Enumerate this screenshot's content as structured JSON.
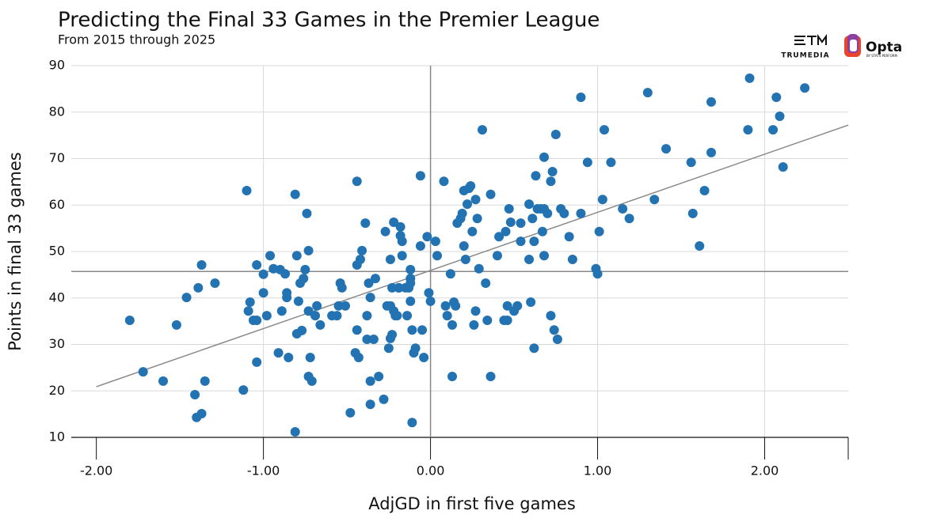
{
  "chart_data": {
    "type": "scatter",
    "title": "Predicting the Final 33 Games in the Premier League",
    "subtitle": "From 2015 through 2025",
    "xlabel": "AdjGD in first five games",
    "ylabel": "Points in final 33 games",
    "logos": [
      "TRUMEDIA",
      "Opta",
      "BY STATS PERFORM"
    ],
    "color": "#2373b3",
    "xlim": [
      -2.15,
      2.5
    ],
    "ylim": [
      10,
      90
    ],
    "xticks": [
      {
        "value": -2,
        "label": "-2.00"
      },
      {
        "value": -1,
        "label": "-1.00"
      },
      {
        "value": 0,
        "label": "0.00"
      },
      {
        "value": 1,
        "label": "1.00"
      },
      {
        "value": 2,
        "label": "2.00"
      }
    ],
    "yticks": [
      10,
      20,
      30,
      40,
      50,
      60,
      70,
      80,
      90
    ],
    "grid": true,
    "reference_lines": {
      "x": 0,
      "y": 45.7
    },
    "trend": {
      "x": [
        -2,
        2.5
      ],
      "values": [
        20.9,
        77.2
      ]
    },
    "x": [
      -1.8,
      -1.72,
      -1.6,
      -1.52,
      -1.46,
      -1.41,
      -1.4,
      -1.39,
      -1.37,
      -1.37,
      -1.35,
      -1.29,
      -1.12,
      -1.1,
      -1.09,
      -1.08,
      -1.06,
      -1.04,
      -1.04,
      -1.04,
      -1.0,
      -1.0,
      -0.98,
      -0.96,
      -0.94,
      -0.91,
      -0.9,
      -0.89,
      -0.87,
      -0.86,
      -0.86,
      -0.85,
      -0.81,
      -0.81,
      -0.8,
      -0.8,
      -0.79,
      -0.78,
      -0.77,
      -0.76,
      -0.75,
      -0.74,
      -0.73,
      -0.73,
      -0.73,
      -0.72,
      -0.71,
      -0.69,
      -0.68,
      -0.66,
      -0.59,
      -0.56,
      -0.55,
      -0.54,
      -0.53,
      -0.51,
      -0.48,
      -0.45,
      -0.44,
      -0.44,
      -0.44,
      -0.43,
      -0.42,
      -0.41,
      -0.39,
      -0.38,
      -0.38,
      -0.37,
      -0.36,
      -0.36,
      -0.36,
      -0.34,
      -0.33,
      -0.31,
      -0.28,
      -0.27,
      -0.26,
      -0.25,
      -0.24,
      -0.24,
      -0.24,
      -0.23,
      -0.23,
      -0.22,
      -0.22,
      -0.21,
      -0.2,
      -0.19,
      -0.19,
      -0.18,
      -0.18,
      -0.17,
      -0.17,
      -0.15,
      -0.14,
      -0.13,
      -0.12,
      -0.12,
      -0.12,
      -0.12,
      -0.11,
      -0.11,
      -0.1,
      -0.09,
      -0.06,
      -0.06,
      -0.05,
      -0.04,
      -0.02,
      -0.01,
      0.0,
      0.03,
      0.04,
      0.08,
      0.09,
      0.1,
      0.12,
      0.13,
      0.13,
      0.14,
      0.15,
      0.16,
      0.18,
      0.19,
      0.2,
      0.2,
      0.21,
      0.22,
      0.23,
      0.24,
      0.25,
      0.26,
      0.27,
      0.27,
      0.28,
      0.29,
      0.31,
      0.33,
      0.34,
      0.36,
      0.36,
      0.4,
      0.41,
      0.44,
      0.45,
      0.46,
      0.46,
      0.47,
      0.48,
      0.5,
      0.52,
      0.54,
      0.54,
      0.59,
      0.59,
      0.6,
      0.61,
      0.62,
      0.62,
      0.63,
      0.64,
      0.66,
      0.67,
      0.68,
      0.68,
      0.68,
      0.7,
      0.72,
      0.72,
      0.73,
      0.74,
      0.75,
      0.76,
      0.78,
      0.8,
      0.83,
      0.85,
      0.9,
      0.9,
      0.94,
      0.99,
      1.0,
      1.01,
      1.03,
      1.04,
      1.08,
      1.15,
      1.19,
      1.3,
      1.34,
      1.41,
      1.56,
      1.57,
      1.61,
      1.64,
      1.68,
      1.68,
      1.9,
      1.91,
      2.05,
      2.07,
      2.09,
      2.11,
      2.24
    ],
    "values": [
      35.2,
      24.1,
      22.1,
      34.2,
      40.1,
      19.2,
      14.3,
      42.2,
      47.1,
      15.1,
      22.1,
      43.2,
      20.2,
      63.1,
      37.2,
      39.1,
      35.2,
      47.1,
      35.2,
      26.2,
      45.1,
      41.1,
      36.2,
      49.1,
      46.3,
      28.2,
      46.1,
      37.2,
      45.2,
      40.1,
      41.1,
      27.2,
      11.2,
      62.3,
      49.1,
      32.3,
      39.3,
      43.2,
      33.0,
      44.2,
      46.1,
      58.2,
      50.2,
      37.2,
      23.1,
      27.2,
      22.1,
      36.2,
      38.3,
      34.2,
      36.2,
      36.2,
      38.3,
      43.2,
      42.2,
      38.3,
      15.3,
      28.2,
      65.1,
      47.1,
      33.1,
      27.2,
      48.3,
      50.2,
      56.1,
      36.2,
      31.1,
      43.2,
      40.1,
      17.1,
      22.1,
      31.1,
      44.2,
      23.1,
      18.2,
      54.3,
      38.3,
      29.2,
      38.3,
      48.3,
      31.3,
      32.1,
      42.2,
      37.2,
      56.3,
      36.2,
      36.2,
      42.2,
      42.2,
      55.3,
      53.4,
      52.2,
      49.1,
      42.2,
      36.2,
      42.2,
      46.1,
      44.2,
      43.2,
      39.3,
      13.2,
      33.1,
      28.2,
      29.2,
      51.2,
      66.3,
      33.1,
      27.2,
      53.2,
      41.1,
      39.3,
      52.2,
      49.1,
      65.1,
      38.3,
      36.2,
      45.2,
      34.2,
      23.1,
      39.1,
      38.3,
      56.1,
      57.1,
      58.2,
      63.1,
      51.2,
      48.3,
      60.2,
      63.6,
      64.1,
      54.3,
      34.2,
      37.2,
      61.2,
      57.1,
      46.3,
      76.2,
      43.2,
      35.2,
      62.3,
      23.1,
      49.1,
      53.2,
      35.2,
      54.3,
      38.3,
      35.2,
      59.2,
      56.3,
      37.2,
      38.3,
      56.1,
      52.2,
      60.2,
      48.3,
      39.1,
      57.1,
      29.2,
      52.2,
      66.3,
      59.2,
      59.2,
      54.3,
      59.2,
      49.1,
      70.3,
      58.2,
      36.2,
      65.1,
      67.2,
      33.1,
      75.2,
      31.1,
      59.2,
      58.2,
      53.2,
      48.3,
      83.2,
      58.2,
      69.2,
      46.3,
      45.2,
      54.3,
      61.2,
      76.2,
      69.2,
      59.2,
      57.1,
      84.2,
      61.2,
      72.1,
      69.2,
      58.2,
      51.2,
      63.1,
      82.2,
      71.3,
      76.2,
      87.3,
      76.2,
      83.2,
      79.1,
      68.2,
      85.2
    ]
  }
}
